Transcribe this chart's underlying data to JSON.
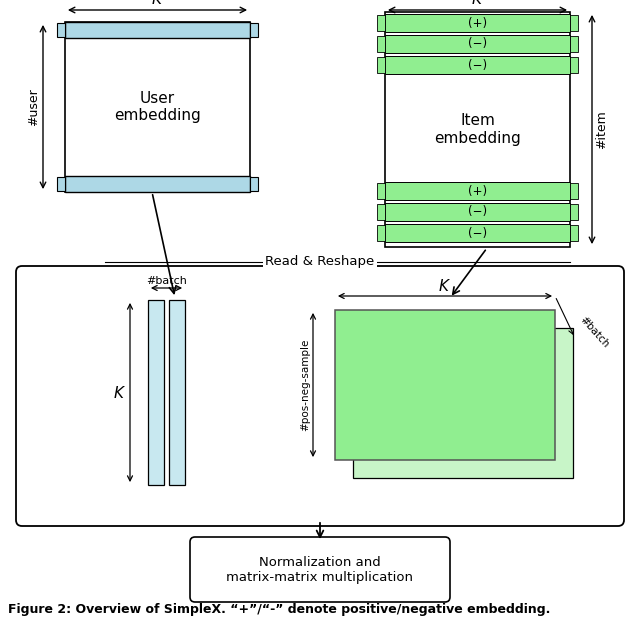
{
  "fig_width": 6.4,
  "fig_height": 6.19,
  "background": "#ffffff",
  "blue_fill": "#add8e6",
  "blue_light": "#c8e8f0",
  "green_fill": "#90ee90",
  "green_light": "#c8f5c8",
  "caption": "Figure 2: Overview of SimpleX. “+”/“-” denote positive/negative embedding.",
  "read_reshape_text": "Read & Reshape",
  "norm_text": "Normalization and\nmatrix-matrix multiplication",
  "user_label": "#user",
  "item_label": "#item",
  "batch_label": "#batch",
  "pns_label": "#pos-neg-sample",
  "batch2_label": "#batch",
  "user_embed_label": "User\nembedding",
  "item_embed_label": "Item\nembedding",
  "plus_label": "(+)",
  "minus_label": "(−)"
}
